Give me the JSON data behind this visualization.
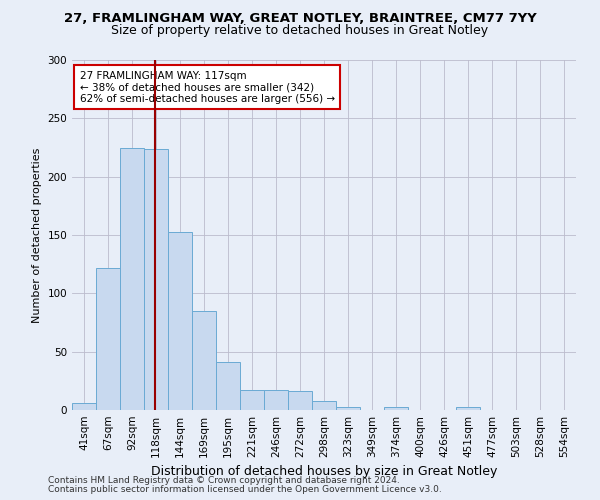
{
  "title1": "27, FRAMLINGHAM WAY, GREAT NOTLEY, BRAINTREE, CM77 7YY",
  "title2": "Size of property relative to detached houses in Great Notley",
  "xlabel": "Distribution of detached houses by size in Great Notley",
  "ylabel": "Number of detached properties",
  "bar_color": "#c8d9ef",
  "bar_edge_color": "#6aaad4",
  "bin_labels": [
    "41sqm",
    "67sqm",
    "92sqm",
    "118sqm",
    "144sqm",
    "169sqm",
    "195sqm",
    "221sqm",
    "246sqm",
    "272sqm",
    "298sqm",
    "323sqm",
    "349sqm",
    "374sqm",
    "400sqm",
    "426sqm",
    "451sqm",
    "477sqm",
    "503sqm",
    "528sqm",
    "554sqm"
  ],
  "bar_values": [
    6,
    122,
    225,
    224,
    153,
    85,
    41,
    17,
    17,
    16,
    8,
    3,
    0,
    3,
    0,
    0,
    3,
    0,
    0,
    0,
    0
  ],
  "vline_x": 2.96,
  "vline_color": "#990000",
  "annotation_text": "27 FRAMLINGHAM WAY: 117sqm\n← 38% of detached houses are smaller (342)\n62% of semi-detached houses are larger (556) →",
  "annotation_box_color": "#ffffff",
  "annotation_box_edge": "#cc0000",
  "footnote1": "Contains HM Land Registry data © Crown copyright and database right 2024.",
  "footnote2": "Contains public sector information licensed under the Open Government Licence v3.0.",
  "bg_color": "#e8eef8",
  "plot_bg_color": "#e8eef8",
  "ylim": [
    0,
    300
  ],
  "yticks": [
    0,
    50,
    100,
    150,
    200,
    250,
    300
  ],
  "title1_fontsize": 9.5,
  "title2_fontsize": 9,
  "xlabel_fontsize": 9,
  "ylabel_fontsize": 8,
  "tick_fontsize": 7.5,
  "footnote_fontsize": 6.5
}
